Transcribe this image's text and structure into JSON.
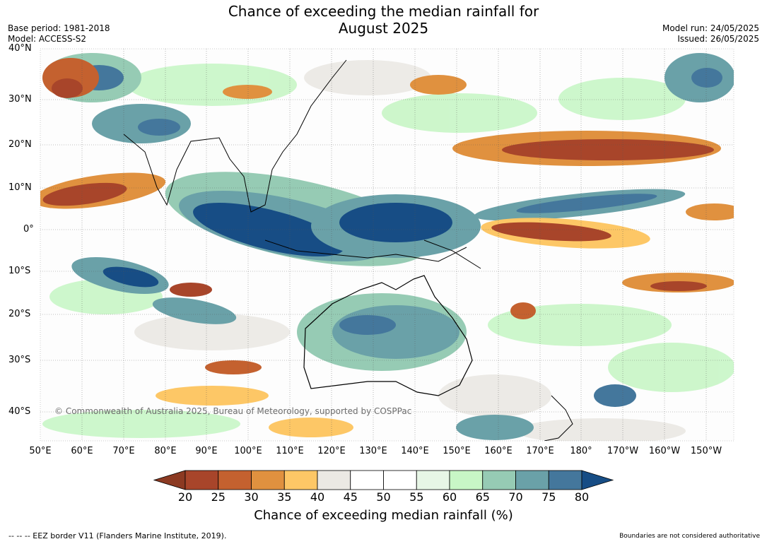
{
  "title": {
    "line1": "Chance of exceeding the median rainfall for",
    "line2": "August 2025"
  },
  "meta_left": {
    "base_period": "Base period: 1981-2018",
    "model": "Model: ACCESS-S2"
  },
  "meta_right": {
    "model_run": "Model run: 24/05/2025",
    "issued": "Issued: 26/05/2025"
  },
  "lat_labels": [
    "40°N",
    "30°N",
    "20°N",
    "10°N",
    "0°",
    "10°S",
    "20°S",
    "30°S",
    "40°S"
  ],
  "lon_labels": [
    "50°E",
    "60°E",
    "70°E",
    "80°E",
    "90°E",
    "100°E",
    "110°E",
    "120°E",
    "130°E",
    "140°E",
    "150°E",
    "160°E",
    "170°E",
    "180°",
    "170°W",
    "160°W",
    "150°W"
  ],
  "copyright": "© Commonwealth of Australia 2025, Bureau of Meteorology, supported by COSPPac",
  "colorbar": {
    "title": "Chance of exceeding median rainfall (%)",
    "ticks": [
      "20",
      "25",
      "30",
      "35",
      "40",
      "45",
      "50",
      "55",
      "60",
      "65",
      "70",
      "75",
      "80"
    ],
    "colors": [
      "#a8452a",
      "#c4612f",
      "#e0913f",
      "#fdc766",
      "#ebe9e4",
      "#ffffff",
      "#ffffff",
      "#e7f6e6",
      "#c8f6c6",
      "#96cbb4",
      "#6aa1a8",
      "#44779c"
    ],
    "low_color": "#8c3a22",
    "high_color": "#174d85"
  },
  "footer": {
    "left": "--  --  -- EEZ border V11 (Flanders Marine Institute, 2019).",
    "right": "Boundaries are not considered authoritative"
  }
}
